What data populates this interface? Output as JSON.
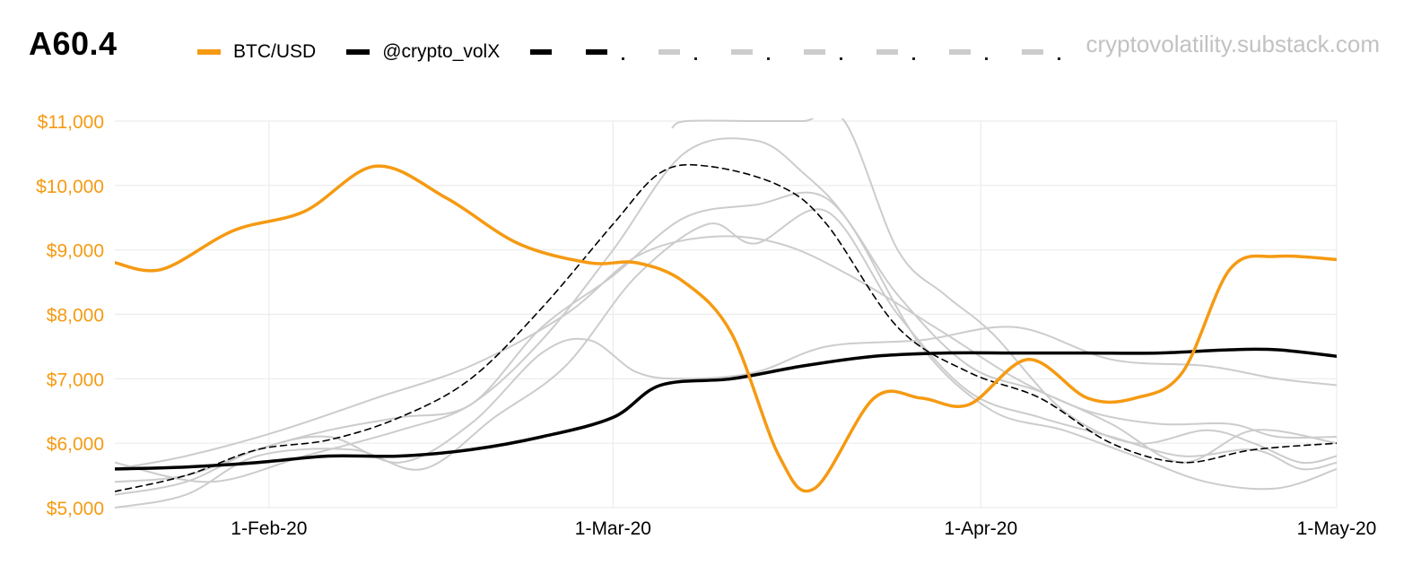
{
  "header": {
    "title": "A60.4",
    "watermark": "cryptovolatility.substack.com"
  },
  "legend": {
    "items": [
      {
        "label": "BTC/USD",
        "color": "#f59a12"
      },
      {
        "label": "@crypto_volX",
        "color": "#000000"
      }
    ],
    "dashed_entries": [
      {
        "color": "#000000",
        "dot": ""
      },
      {
        "color": "#000000",
        "dot": "."
      },
      {
        "color": "#cccccc",
        "dot": "."
      },
      {
        "color": "#cccccc",
        "dot": "."
      },
      {
        "color": "#cccccc",
        "dot": "."
      },
      {
        "color": "#cccccc",
        "dot": "."
      },
      {
        "color": "#cccccc",
        "dot": "."
      },
      {
        "color": "#cccccc",
        "dot": "."
      }
    ]
  },
  "chart_data": {
    "type": "line",
    "title": "A60.4",
    "xlabel": "",
    "ylabel": "",
    "x_unit": "days since 1-Jan-20",
    "xlim": [
      18,
      121
    ],
    "ylim": [
      5000,
      11000
    ],
    "yticks": [
      5000,
      6000,
      7000,
      8000,
      9000,
      10000,
      11000
    ],
    "ytick_labels": [
      "$5,000",
      "$6,000",
      "$7,000",
      "$8,000",
      "$9,000",
      "$10,000",
      "$11,000"
    ],
    "xticks": [
      31,
      60,
      91,
      121
    ],
    "xtick_labels": [
      "1-Feb-20",
      "1-Mar-20",
      "1-Apr-20",
      "1-May-20"
    ],
    "grid": true,
    "series": [
      {
        "name": "grey-1",
        "color": "#cccccc",
        "width": 2,
        "dash": "",
        "x": [
          18,
          24,
          32,
          40,
          48,
          56,
          62,
          68,
          74,
          80,
          88,
          94,
          100,
          106,
          112,
          116,
          121
        ],
        "y": [
          5600,
          5800,
          6200,
          6700,
          7200,
          8000,
          8900,
          9200,
          9100,
          8600,
          7700,
          7000,
          6500,
          6300,
          6300,
          6100,
          6100
        ]
      },
      {
        "name": "grey-2",
        "color": "#cccccc",
        "width": 2,
        "dash": "",
        "x": [
          18,
          24,
          30,
          38,
          44,
          50,
          56,
          62,
          68,
          72,
          78,
          84,
          90,
          96,
          102,
          108,
          114,
          118,
          121
        ],
        "y": [
          5000,
          5200,
          5800,
          5900,
          5600,
          6400,
          7200,
          8600,
          9400,
          9100,
          9600,
          8000,
          6800,
          6400,
          6100,
          5800,
          5900,
          5600,
          5700
        ]
      },
      {
        "name": "grey-3",
        "color": "#cccccc",
        "width": 2,
        "dash": "",
        "x": [
          18,
          24,
          30,
          36,
          42,
          48,
          54,
          58,
          62,
          66,
          72,
          78,
          86,
          94,
          102,
          110,
          116,
          121
        ],
        "y": [
          5200,
          5400,
          5900,
          6100,
          5700,
          6300,
          7400,
          7600,
          7100,
          7000,
          7100,
          7500,
          7600,
          7800,
          7300,
          7200,
          7000,
          6900
        ]
      },
      {
        "name": "grey-4",
        "color": "#cccccc",
        "width": 2,
        "dash": "",
        "x": [
          18,
          24,
          30,
          36,
          42,
          48,
          54,
          60,
          66,
          72,
          78,
          84,
          90,
          96,
          102,
          108,
          114,
          121
        ],
        "y": [
          5400,
          5500,
          5900,
          6200,
          6400,
          6600,
          7800,
          8600,
          9500,
          9700,
          9800,
          8300,
          7200,
          6800,
          6300,
          5700,
          6200,
          6000
        ]
      },
      {
        "name": "grey-5",
        "color": "#cccccc",
        "width": 2,
        "dash": "",
        "x": [
          18,
          26,
          34,
          42,
          48,
          54,
          60,
          66,
          72,
          76,
          80,
          86,
          92,
          98,
          104,
          110,
          116,
          121
        ],
        "y": [
          5700,
          5400,
          5800,
          6200,
          6600,
          7600,
          9000,
          10500,
          10700,
          10200,
          9400,
          7500,
          6500,
          6200,
          5800,
          5400,
          5300,
          5600
        ]
      },
      {
        "name": "grey-6",
        "color": "#cccccc",
        "width": 2,
        "dash": "",
        "x": [
          65,
          66.2,
          72,
          76,
          79.5,
          84,
          88,
          92,
          98,
          104,
          110,
          114,
          118,
          121
        ],
        "y": [
          10900,
          11000,
          11000,
          11000,
          11000,
          9000,
          8300,
          7700,
          6500,
          6000,
          6200,
          6000,
          5700,
          5800
        ]
      },
      {
        "name": "dashed-black",
        "color": "#000000",
        "width": 1.6,
        "dash": "7 5",
        "x": [
          18,
          24,
          30,
          36,
          42,
          48,
          54,
          60,
          64,
          68,
          74,
          78,
          84,
          90,
          96,
          102,
          108,
          114,
          121
        ],
        "y": [
          5250,
          5500,
          5900,
          6050,
          6400,
          7000,
          8100,
          9400,
          10200,
          10300,
          10000,
          9400,
          7800,
          7100,
          6700,
          6000,
          5700,
          5900,
          6000
        ]
      },
      {
        "name": "@crypto_volX",
        "color": "#000000",
        "width": 3.5,
        "dash": "",
        "x": [
          18,
          24,
          30,
          36,
          42,
          48,
          54,
          60,
          64,
          70,
          76,
          82,
          88,
          94,
          100,
          106,
          112,
          116,
          121
        ],
        "y": [
          5600,
          5630,
          5700,
          5800,
          5800,
          5900,
          6100,
          6400,
          6900,
          7000,
          7200,
          7350,
          7400,
          7400,
          7400,
          7400,
          7450,
          7450,
          7350
        ]
      },
      {
        "name": "BTC/USD",
        "color": "#f59a12",
        "width": 3.5,
        "dash": "",
        "x": [
          18,
          22,
          28,
          34,
          40,
          46,
          52,
          58,
          62,
          66,
          70,
          74,
          77,
          82,
          86,
          90,
          95,
          100,
          104,
          108,
          112,
          116,
          121
        ],
        "y": [
          8800,
          8700,
          9300,
          9600,
          10300,
          9800,
          9100,
          8800,
          8800,
          8500,
          7700,
          5800,
          5300,
          6700,
          6700,
          6600,
          7300,
          6700,
          6700,
          7100,
          8700,
          8900,
          8850
        ]
      }
    ]
  }
}
